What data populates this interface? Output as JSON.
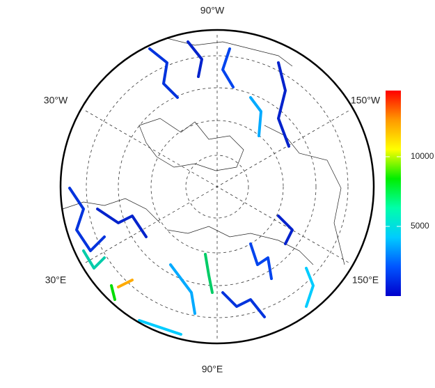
{
  "map": {
    "longitude_labels": [
      "90°W",
      "30°W",
      "150°W",
      "30°E",
      "90°E",
      "150°E"
    ],
    "colorbar": {
      "range": [
        0,
        14750
      ],
      "ticks": [
        5000,
        10000
      ],
      "colors": [
        "#0000cc",
        "#0055ff",
        "#00ccff",
        "#00ffaa",
        "#00ee00",
        "#ffff00",
        "#ff9900",
        "#ff0000"
      ]
    }
  }
}
